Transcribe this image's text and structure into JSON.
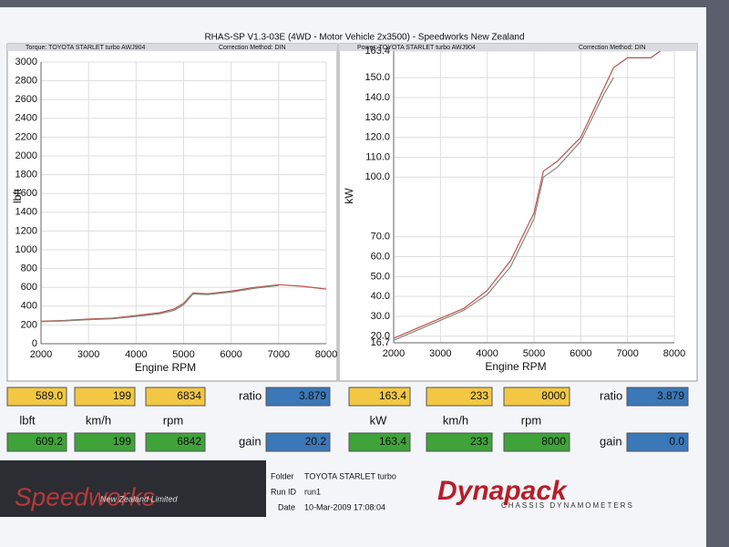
{
  "header": {
    "title": "RHAS-SP V1.3-03E  (4WD - Motor Vehicle 2x3500) - Speedworks New Zealand"
  },
  "chart_data": [
    {
      "type": "line",
      "subtitle": "Torque: TOYOTA STARLET turbo AWJ904",
      "note": "Correction Method: DIN",
      "x_label": "Engine RPM",
      "y_label": "lbft",
      "xlim": [
        2000,
        8000
      ],
      "xticks": [
        2000,
        3000,
        4000,
        5000,
        6000,
        7000,
        8000
      ],
      "ylim": [
        0,
        3000
      ],
      "yticks": [
        0,
        200,
        400,
        600,
        800,
        1000,
        1200,
        1400,
        1600,
        1800,
        2000,
        2200,
        2400,
        2600,
        2800,
        3000
      ],
      "grid": true,
      "x": [
        2000,
        2500,
        3000,
        3500,
        4000,
        4500,
        4800,
        5000,
        5200,
        5500,
        6000,
        6500,
        7000,
        7500,
        8000
      ],
      "series": [
        {
          "color": "#c0504d",
          "values": [
            240,
            248,
            262,
            272,
            300,
            330,
            370,
            430,
            540,
            532,
            560,
            600,
            628,
            612,
            582
          ]
        },
        {
          "color": "#7f8c7a",
          "values": [
            235,
            243,
            255,
            265,
            290,
            318,
            355,
            415,
            530,
            522,
            550,
            590,
            620,
            null,
            null
          ]
        }
      ]
    },
    {
      "type": "line",
      "subtitle": "Power: TOYOTA STARLET turbo AWJ904",
      "note": "Correction Method: DIN",
      "x_label": "Engine RPM",
      "y_label": "kW",
      "xlim": [
        2000,
        8000
      ],
      "xticks": [
        2000,
        3000,
        4000,
        5000,
        6000,
        7000,
        8000
      ],
      "ylim": [
        16.7,
        163.4
      ],
      "yticks": [
        16.7,
        {
          "value": 20,
          "label": "20.0"
        },
        {
          "value": 30,
          "label": "30.0"
        },
        {
          "value": 40,
          "label": "40.0"
        },
        {
          "value": 50,
          "label": "50.0"
        },
        {
          "value": 60,
          "label": "60.0"
        },
        {
          "value": 70,
          "label": "70.0"
        },
        {
          "value": 100,
          "label": "100.0"
        },
        {
          "value": 110,
          "label": "110.0"
        },
        {
          "value": 120,
          "label": "120.0"
        },
        {
          "value": 130,
          "label": "130.0"
        },
        {
          "value": 140,
          "label": "140.0"
        },
        {
          "value": 150,
          "label": "150.0"
        },
        163.4
      ],
      "grid": true,
      "x": [
        2000,
        2500,
        3000,
        3500,
        4000,
        4500,
        5000,
        5200,
        5500,
        6000,
        6500,
        6700,
        7000,
        7500,
        7700
      ],
      "series": [
        {
          "color": "#c0504d",
          "values": [
            19,
            24,
            29,
            34,
            43,
            58,
            82,
            103,
            108,
            120,
            145,
            155,
            160,
            160,
            163.4
          ]
        },
        {
          "color": "#7f8c7a",
          "values": [
            18,
            23,
            28,
            33,
            41,
            55,
            79,
            100,
            105,
            118,
            142,
            150,
            null,
            null,
            null
          ]
        }
      ]
    }
  ],
  "readouts": {
    "top": [
      "589.0",
      "199",
      "6834",
      "ratio",
      "3.879",
      "163.4",
      "233",
      "8000",
      "ratio",
      "3.879"
    ],
    "units": [
      "lbft",
      "km/h",
      "rpm",
      "kW",
      "km/h",
      "rpm"
    ],
    "bottom": [
      "609.2",
      "199",
      "6842",
      "gain",
      "20.2",
      "163.4",
      "233",
      "8000",
      "gain",
      "0.0"
    ]
  },
  "footer": {
    "brand": "Speedworks",
    "brand_sub": "New Zealand Limited",
    "folder_label": "Folder",
    "folder": "TOYOTA STARLET turbo",
    "run_label": "Run ID",
    "run": "run1",
    "date_label": "Date",
    "date": "10-Mar-2009  17:08:04",
    "maker": "Dynapack",
    "maker_sub": "CHASSIS DYNAMOMETERS"
  }
}
